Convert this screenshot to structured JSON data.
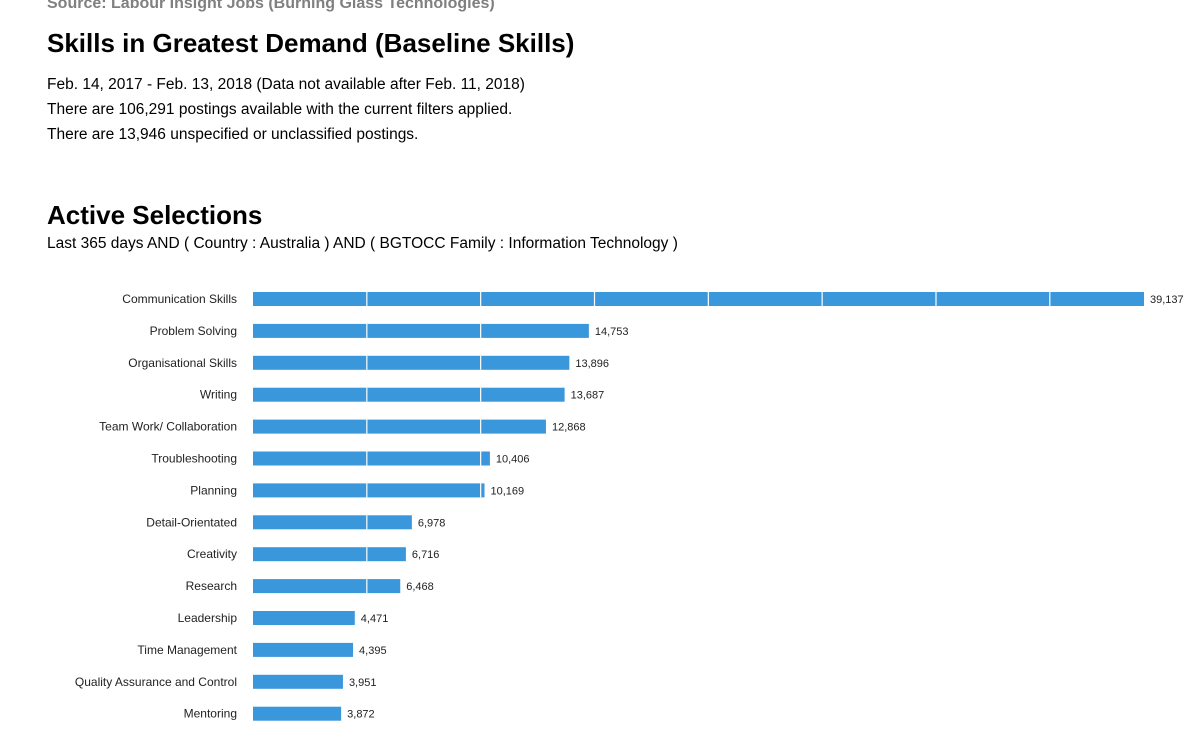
{
  "header": {
    "source": "Source: Labour Insight Jobs (Burning Glass Technologies)",
    "title": "Skills in Greatest Demand (Baseline Skills)",
    "date_range": "Feb.  14, 2017  - Feb.  13, 2018  (Data not available after  Feb.  11, 2018)",
    "postings": "There are 106,291 postings available with the current filters applied.",
    "unclassified": "There are 13,946 unspecified or unclassified postings."
  },
  "selections": {
    "title": "Active Selections",
    "text": "Last 365 days AND ( Country : Australia ) AND ( BGTOCC Family : Information Technology )"
  },
  "chart_data": {
    "type": "bar",
    "orientation": "horizontal",
    "categories": [
      "Communication Skills",
      "Problem Solving",
      "Organisational Skills",
      "Writing",
      "Team Work/ Collaboration",
      "Troubleshooting",
      "Planning",
      "Detail-Orientated",
      "Creativity",
      "Research",
      "Leadership",
      "Time Management",
      "Quality Assurance and Control",
      "Mentoring"
    ],
    "values": [
      39137,
      14753,
      13896,
      13687,
      12868,
      10406,
      10169,
      6978,
      6716,
      6468,
      4471,
      4395,
      3951,
      3872
    ],
    "value_labels": [
      "39,137",
      "14,753",
      "13,896",
      "13,687",
      "12,868",
      "10,406",
      "10,169",
      "6,978",
      "6,716",
      "6,468",
      "4,471",
      "4,395",
      "3,951",
      "3,872"
    ],
    "xlim": [
      0,
      39137
    ],
    "grid_step": 5000,
    "grid": true,
    "bar_color": "#3a97dc",
    "grid_color": "#ffffff"
  }
}
